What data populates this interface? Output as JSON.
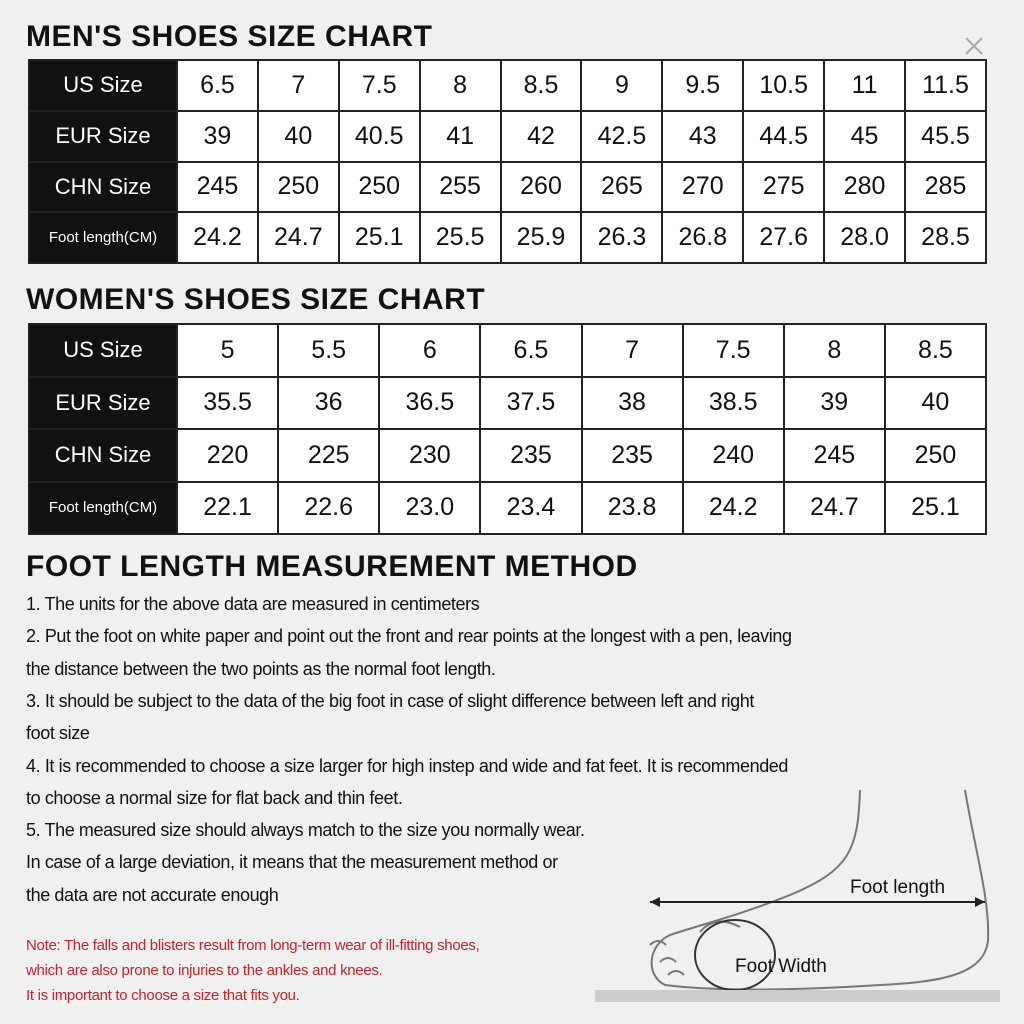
{
  "men": {
    "title": "MEN'S SHOES SIZE CHART",
    "rows": [
      {
        "label": "US Size",
        "cells": [
          "6.5",
          "7",
          "7.5",
          "8",
          "8.5",
          "9",
          "9.5",
          "10.5",
          "11",
          "11.5"
        ]
      },
      {
        "label": "EUR Size",
        "cells": [
          "39",
          "40",
          "40.5",
          "41",
          "42",
          "42.5",
          "43",
          "44.5",
          "45",
          "45.5"
        ]
      },
      {
        "label": "CHN Size",
        "cells": [
          "245",
          "250",
          "250",
          "255",
          "260",
          "265",
          "270",
          "275",
          "280",
          "285"
        ]
      },
      {
        "label": "Foot length(CM)",
        "cells": [
          "24.2",
          "24.7",
          "25.1",
          "25.5",
          "25.9",
          "26.3",
          "26.8",
          "27.6",
          "28.0",
          "28.5"
        ]
      }
    ]
  },
  "women": {
    "title": "WOMEN'S SHOES SIZE CHART",
    "rows": [
      {
        "label": "US Size",
        "cells": [
          "5",
          "5.5",
          "6",
          "6.5",
          "7",
          "7.5",
          "8",
          "8.5"
        ]
      },
      {
        "label": "EUR Size",
        "cells": [
          "35.5",
          "36",
          "36.5",
          "37.5",
          "38",
          "38.5",
          "39",
          "40"
        ]
      },
      {
        "label": "CHN Size",
        "cells": [
          "220",
          "225",
          "230",
          "235",
          "235",
          "240",
          "245",
          "250"
        ]
      },
      {
        "label": "Foot length(CM)",
        "cells": [
          "22.1",
          "22.6",
          "23.0",
          "23.4",
          "23.8",
          "24.2",
          "24.7",
          "25.1"
        ]
      }
    ]
  },
  "method": {
    "title": "FOOT LENGTH MEASUREMENT METHOD",
    "lines": [
      "1. The units for the above data are measured in centimeters",
      "2. Put the foot on white paper and point out the front and rear points at the longest with a pen, leaving",
      "the distance between the two points as the normal foot length.",
      "3. It should be subject to the data of the big foot in case of slight difference between left and right",
      "foot size",
      "4. It is recommended to choose a size larger for high instep and wide and fat feet. It is recommended",
      "to choose a normal size for flat back and thin feet.",
      "5. The measured size should always match to the size you normally wear.",
      "In case of a large deviation, it means that the measurement method or",
      "the data are not accurate enough"
    ]
  },
  "note": {
    "lines": [
      "Note: The falls and blisters result from long-term wear of ill-fitting shoes,",
      "which are also prone to injuries to the ankles and knees.",
      "It is important to choose a size that fits you."
    ]
  },
  "diagram": {
    "length_label": "Foot length",
    "width_label": "Foot Width"
  }
}
